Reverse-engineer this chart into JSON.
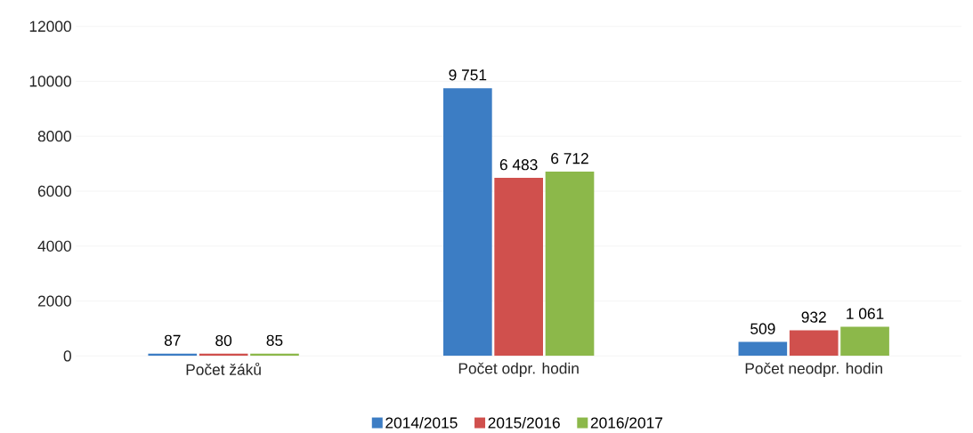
{
  "chart_data": {
    "type": "bar",
    "categories": [
      "Počet žáků",
      "Počet odpr. hodin",
      "Počet neodpr. hodin"
    ],
    "series": [
      {
        "name": "2014/2015",
        "color": "#3c7dc4",
        "values": [
          87,
          9751,
          509
        ],
        "value_labels": [
          "87",
          "9 751",
          "509"
        ]
      },
      {
        "name": "2015/2016",
        "color": "#d0504d",
        "values": [
          80,
          6483,
          932
        ],
        "value_labels": [
          "80",
          "6 483",
          "932"
        ]
      },
      {
        "name": "2016/2017",
        "color": "#8cb84a",
        "values": [
          85,
          6712,
          1061
        ],
        "value_labels": [
          "85",
          "6 712",
          "1 061"
        ]
      }
    ],
    "ylim": [
      0,
      12000
    ],
    "yticks": [
      0,
      2000,
      4000,
      6000,
      8000,
      10000,
      12000
    ],
    "grid": "y",
    "legend": "bottom"
  }
}
